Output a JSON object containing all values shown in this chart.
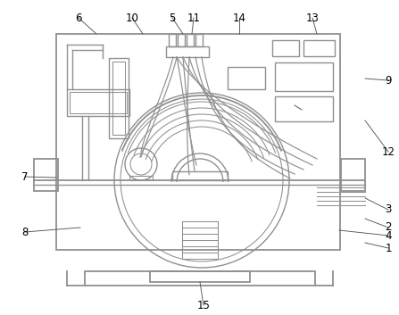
{
  "bg_color": "#ffffff",
  "line_color": "#909090",
  "dark_line": "#606060",
  "label_color": "#000000",
  "figsize": [
    4.47,
    3.53
  ],
  "dpi": 100
}
